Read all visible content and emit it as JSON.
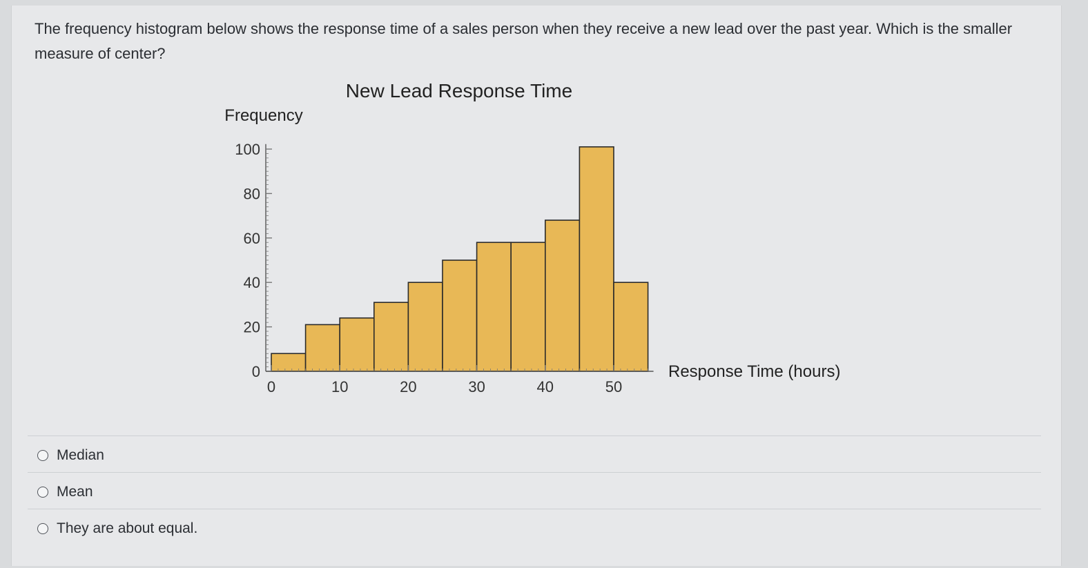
{
  "question": {
    "text": "The frequency histogram below shows the response time of a sales person when they receive a new lead over the past year.  Which is the smaller measure of center?"
  },
  "chart_data": {
    "type": "bar",
    "title": "New Lead Response Time",
    "ylabel": "Frequency",
    "xlabel": "Response Time (hours)",
    "bin_width": 5,
    "bins": [
      [
        0,
        5
      ],
      [
        5,
        10
      ],
      [
        10,
        15
      ],
      [
        15,
        20
      ],
      [
        20,
        25
      ],
      [
        25,
        30
      ],
      [
        30,
        35
      ],
      [
        35,
        40
      ],
      [
        40,
        45
      ],
      [
        45,
        50
      ],
      [
        50,
        55
      ]
    ],
    "values": [
      8,
      21,
      24,
      31,
      40,
      50,
      58,
      58,
      68,
      101,
      40
    ],
    "xticks": [
      0,
      10,
      20,
      30,
      40,
      50
    ],
    "yticks": [
      0,
      20,
      40,
      60,
      80,
      100
    ],
    "xlim": [
      0,
      55
    ],
    "ylim": [
      0,
      101
    ],
    "bar_color": "#e8b856",
    "bar_edge_color": "#2a2a2a",
    "grid": false
  },
  "options": [
    {
      "label": "Median"
    },
    {
      "label": "Mean"
    },
    {
      "label": "They are about equal."
    }
  ]
}
